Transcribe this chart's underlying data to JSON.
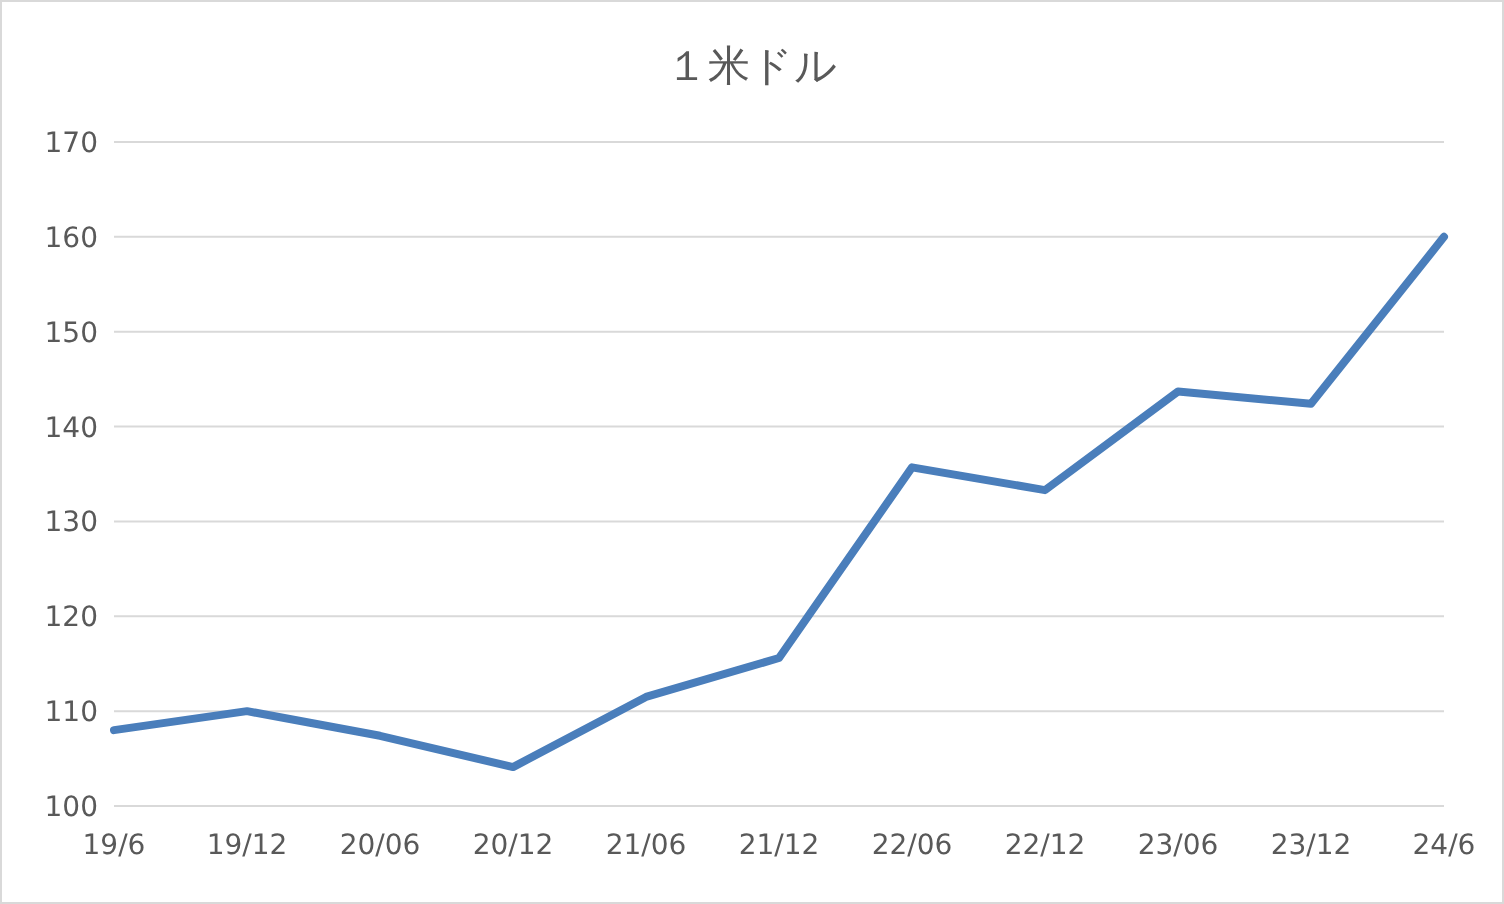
{
  "chart_data": {
    "type": "line",
    "title": "１米ドル",
    "categories": [
      "19/6",
      "19/12",
      "20/06",
      "20/12",
      "21/06",
      "21/12",
      "22/06",
      "22/12",
      "23/06",
      "23/12",
      "24/6"
    ],
    "series": [
      {
        "color": "#4a7ebb",
        "values": [
          108,
          110,
          107.4,
          104.1,
          111.5,
          115.6,
          135.7,
          133.3,
          143.7,
          142.4,
          160
        ]
      }
    ],
    "ylim": [
      100,
      170
    ],
    "yticks": [
      100,
      110,
      120,
      130,
      140,
      150,
      160,
      170
    ],
    "grid": "y",
    "legend": false,
    "marker": "none",
    "line_style": "solid"
  }
}
